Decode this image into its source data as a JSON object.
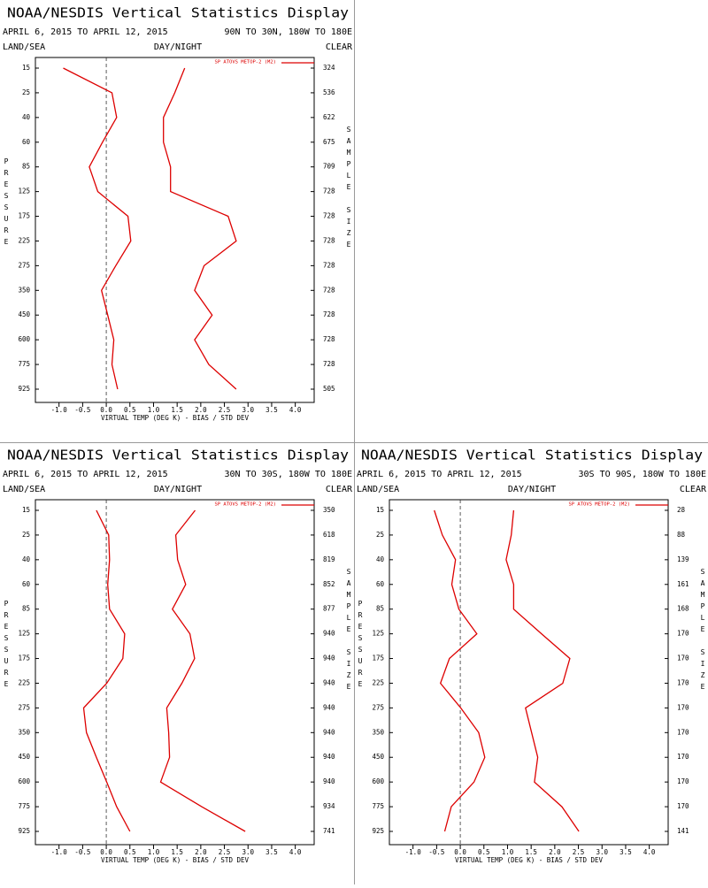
{
  "chart_data": [
    {
      "type": "line",
      "title": "NOAA/NESDIS Vertical Statistics Display",
      "subtitle": "APRIL 6, 2015 TO APRIL 12, 2015",
      "region": "90N TO 30N, 180W TO 180E",
      "left_label": "LAND/SEA",
      "center_label": "DAY/NIGHT",
      "right_label": "CLEAR",
      "xlabel": "VIRTUAL TEMP (DEG K) - BIAS / STD DEV",
      "ylabel": "PRESSURE",
      "y2label": "SAMPLE SIZE",
      "categories": [
        15,
        25,
        40,
        60,
        85,
        125,
        175,
        225,
        275,
        350,
        450,
        600,
        775,
        925
      ],
      "sample_size": [
        324,
        536,
        622,
        675,
        709,
        728,
        728,
        728,
        728,
        728,
        728,
        728,
        728,
        505
      ],
      "xlim": [
        -1.5,
        4.4
      ],
      "xticks": [
        {
          "value": -1.0,
          "label": "-1.0"
        },
        {
          "value": -0.5,
          "label": "-0.5"
        },
        {
          "value": 0,
          "label": "0.0"
        },
        {
          "value": 0.5,
          "label": "0.5"
        },
        {
          "value": 1.0,
          "label": "1.0"
        },
        {
          "value": 1.5,
          "label": "1.5"
        },
        {
          "value": 2.0,
          "label": "2.0"
        },
        {
          "value": 2.5,
          "label": "2.5"
        },
        {
          "value": 3.0,
          "label": "3.0"
        },
        {
          "value": 3.5,
          "label": "3.5"
        },
        {
          "value": 4.0,
          "label": "4.0"
        }
      ],
      "reference_x": 0,
      "series": [
        {
          "name": "SP ATOVS METOP-2 (M2)",
          "color": "#dd0000",
          "values": [
            -0.91,
            0.12,
            0.22,
            -0.08,
            -0.36,
            -0.18,
            0.46,
            0.52,
            0.2,
            -0.1,
            0.03,
            0.16,
            0.12,
            0.24
          ]
        },
        {
          "color": "#dd0000",
          "values": [
            1.66,
            1.45,
            1.21,
            1.21,
            1.36,
            1.36,
            2.58,
            2.75,
            2.07,
            1.87,
            2.24,
            1.87,
            2.17,
            2.75
          ]
        }
      ]
    },
    {
      "type": "line",
      "title": "NOAA/NESDIS Vertical Statistics Display",
      "subtitle": "APRIL 6, 2015 TO APRIL 12, 2015",
      "region": "30N TO 30S, 180W TO 180E",
      "left_label": "LAND/SEA",
      "center_label": "DAY/NIGHT",
      "right_label": "CLEAR",
      "xlabel": "VIRTUAL TEMP (DEG K) - BIAS / STD DEV",
      "ylabel": "PRESSURE",
      "y2label": "SAMPLE SIZE",
      "categories": [
        15,
        25,
        40,
        60,
        85,
        125,
        175,
        225,
        275,
        350,
        450,
        600,
        775,
        925
      ],
      "sample_size": [
        350,
        618,
        819,
        852,
        877,
        940,
        940,
        940,
        940,
        940,
        940,
        940,
        934,
        741
      ],
      "xlim": [
        -1.5,
        4.4
      ],
      "xticks": [
        {
          "value": -1.0,
          "label": "-1.0"
        },
        {
          "value": -0.5,
          "label": "-0.5"
        },
        {
          "value": 0,
          "label": "0.0"
        },
        {
          "value": 0.5,
          "label": "0.5"
        },
        {
          "value": 1.0,
          "label": "1.0"
        },
        {
          "value": 1.5,
          "label": "1.5"
        },
        {
          "value": 2.0,
          "label": "2.0"
        },
        {
          "value": 2.5,
          "label": "2.5"
        },
        {
          "value": 3.0,
          "label": "3.0"
        },
        {
          "value": 3.5,
          "label": "3.5"
        },
        {
          "value": 4.0,
          "label": "4.0"
        }
      ],
      "reference_x": 0,
      "series": [
        {
          "name": "SP ATOVS METOP-2 (M2)",
          "color": "#dd0000",
          "values": [
            -0.21,
            0.05,
            0.07,
            0.03,
            0.07,
            0.39,
            0.35,
            0.01,
            -0.48,
            -0.42,
            -0.21,
            0.01,
            0.22,
            0.5
          ]
        },
        {
          "color": "#dd0000",
          "values": [
            1.88,
            1.47,
            1.51,
            1.68,
            1.4,
            1.77,
            1.87,
            1.6,
            1.28,
            1.32,
            1.34,
            1.15,
            2.02,
            2.94
          ]
        }
      ]
    },
    {
      "type": "line",
      "title": "NOAA/NESDIS Vertical Statistics Display",
      "subtitle": "APRIL 6, 2015 TO APRIL 12, 2015",
      "region": "30S TO 90S, 180W TO 180E",
      "left_label": "LAND/SEA",
      "center_label": "DAY/NIGHT",
      "right_label": "CLEAR",
      "xlabel": "VIRTUAL TEMP (DEG K) - BIAS / STD DEV",
      "ylabel": "PRESSURE",
      "y2label": "SAMPLE SIZE",
      "categories": [
        15,
        25,
        40,
        60,
        85,
        125,
        175,
        225,
        275,
        350,
        450,
        600,
        775,
        925
      ],
      "sample_size": [
        28,
        88,
        139,
        161,
        168,
        170,
        170,
        170,
        170,
        170,
        170,
        170,
        170,
        141
      ],
      "xlim": [
        -1.5,
        4.4
      ],
      "xticks": [
        {
          "value": -1.0,
          "label": "-1.0"
        },
        {
          "value": -0.5,
          "label": "-0.5"
        },
        {
          "value": 0,
          "label": "0.0"
        },
        {
          "value": 0.5,
          "label": "0.5"
        },
        {
          "value": 1.0,
          "label": "1.0"
        },
        {
          "value": 1.5,
          "label": "1.5"
        },
        {
          "value": 2.0,
          "label": "2.0"
        },
        {
          "value": 2.5,
          "label": "2.5"
        },
        {
          "value": 3.0,
          "label": "3.0"
        },
        {
          "value": 3.5,
          "label": "3.5"
        },
        {
          "value": 4.0,
          "label": "4.0"
        }
      ],
      "reference_x": 0,
      "series": [
        {
          "name": "SP ATOVS METOP-2 (M2)",
          "color": "#dd0000",
          "values": [
            -0.55,
            -0.38,
            -0.1,
            -0.18,
            -0.03,
            0.35,
            -0.23,
            -0.42,
            0.01,
            0.39,
            0.52,
            0.29,
            -0.19,
            -0.33
          ]
        },
        {
          "color": "#dd0000",
          "values": [
            1.13,
            1.08,
            0.97,
            1.13,
            1.13,
            1.72,
            2.32,
            2.17,
            1.38,
            1.51,
            1.64,
            1.57,
            2.15,
            2.51
          ]
        }
      ]
    }
  ]
}
